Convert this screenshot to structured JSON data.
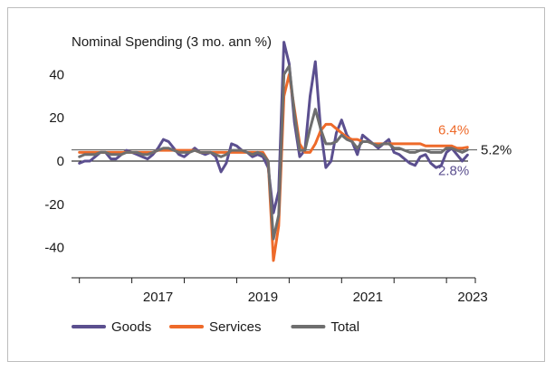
{
  "chart_data": {
    "type": "line",
    "title": "Nominal Spending (3 mo. ann %)",
    "xlabel": "",
    "ylabel": "",
    "xlim": [
      2015.85,
      2023.55
    ],
    "ylim": [
      -54,
      54
    ],
    "y_ticks": [
      40,
      20,
      0,
      -20,
      -40
    ],
    "y_tick_labels": [
      "40",
      "20",
      "0",
      "-20",
      "-40"
    ],
    "x_ticks": [
      2017,
      2019,
      2021,
      2023
    ],
    "x_tick_labels": [
      "2017",
      "2019",
      "2021",
      "2023"
    ],
    "grid": false,
    "reference_lines": [
      {
        "y": 0,
        "color": "#000000"
      },
      {
        "y": 5.2,
        "label": "5.2%",
        "color": "#555555"
      }
    ],
    "annotations": [
      {
        "text": "6.4%",
        "x": 2023.35,
        "y": 6.4,
        "color": "#ee6a2a"
      },
      {
        "text": "5.2%",
        "x": 2023.55,
        "y": 5.2,
        "color": "#1a1a1a"
      },
      {
        "text": "2.8%",
        "x": 2023.35,
        "y": 2.8,
        "color": "#5b4f8f"
      }
    ],
    "legend_position": "bottom-left",
    "series": [
      {
        "name": "Goods",
        "color": "#5b4f8f",
        "x": [
          2016.0,
          2016.1,
          2016.2,
          2016.3,
          2016.4,
          2016.5,
          2016.6,
          2016.7,
          2016.8,
          2016.9,
          2017.0,
          2017.1,
          2017.2,
          2017.3,
          2017.4,
          2017.5,
          2017.6,
          2017.7,
          2017.8,
          2017.9,
          2018.0,
          2018.1,
          2018.2,
          2018.3,
          2018.4,
          2018.5,
          2018.6,
          2018.7,
          2018.8,
          2018.9,
          2019.0,
          2019.1,
          2019.2,
          2019.3,
          2019.4,
          2019.5,
          2019.6,
          2019.7,
          2019.8,
          2019.9,
          2020.0,
          2020.1,
          2020.2,
          2020.3,
          2020.4,
          2020.5,
          2020.6,
          2020.7,
          2020.8,
          2020.9,
          2021.0,
          2021.1,
          2021.2,
          2021.3,
          2021.4,
          2021.5,
          2021.6,
          2021.7,
          2021.8,
          2021.9,
          2022.0,
          2022.1,
          2022.2,
          2022.3,
          2022.4,
          2022.5,
          2022.6,
          2022.7,
          2022.8,
          2022.9,
          2023.0,
          2023.1,
          2023.2,
          2023.3,
          2023.4
        ],
        "values": [
          -1,
          0,
          0,
          2,
          4,
          4,
          1,
          1,
          3,
          5,
          4,
          3,
          2,
          1,
          3,
          6,
          10,
          9,
          6,
          3,
          2,
          4,
          6,
          4,
          3,
          4,
          2,
          -5,
          -1,
          8,
          7,
          5,
          4,
          2,
          3,
          2,
          -3,
          -24,
          -14,
          55,
          45,
          18,
          2,
          5,
          30,
          46,
          15,
          -3,
          0,
          13,
          19,
          12,
          9,
          3,
          12,
          10,
          8,
          6,
          8,
          10,
          4,
          3,
          1,
          -1,
          -2,
          2,
          3,
          -1,
          -3,
          -2,
          4,
          6,
          3,
          0,
          2.8
        ]
      },
      {
        "name": "Services",
        "color": "#ee6a2a",
        "x": [
          2016.0,
          2016.1,
          2016.2,
          2016.3,
          2016.4,
          2016.5,
          2016.6,
          2016.7,
          2016.8,
          2016.9,
          2017.0,
          2017.1,
          2017.2,
          2017.3,
          2017.4,
          2017.5,
          2017.6,
          2017.7,
          2017.8,
          2017.9,
          2018.0,
          2018.1,
          2018.2,
          2018.3,
          2018.4,
          2018.5,
          2018.6,
          2018.7,
          2018.8,
          2018.9,
          2019.0,
          2019.1,
          2019.2,
          2019.3,
          2019.4,
          2019.5,
          2019.6,
          2019.7,
          2019.8,
          2019.9,
          2020.0,
          2020.1,
          2020.2,
          2020.3,
          2020.4,
          2020.5,
          2020.6,
          2020.7,
          2020.8,
          2020.9,
          2021.0,
          2021.1,
          2021.2,
          2021.3,
          2021.4,
          2021.5,
          2021.6,
          2021.7,
          2021.8,
          2021.9,
          2022.0,
          2022.1,
          2022.2,
          2022.3,
          2022.4,
          2022.5,
          2022.6,
          2022.7,
          2022.8,
          2022.9,
          2023.0,
          2023.1,
          2023.2,
          2023.3,
          2023.4
        ],
        "values": [
          4,
          4,
          4,
          4,
          4,
          4,
          4,
          4,
          4,
          4,
          4,
          4,
          4,
          4,
          4,
          5,
          5,
          5,
          5,
          5,
          5,
          5,
          5,
          4,
          4,
          4,
          4,
          4,
          4,
          4,
          4,
          4,
          4,
          4,
          4,
          4,
          0,
          -46,
          -30,
          30,
          40,
          24,
          8,
          4,
          4,
          8,
          14,
          17,
          17,
          15,
          13,
          11,
          10,
          10,
          9,
          9,
          8,
          8,
          8,
          8,
          8,
          8,
          8,
          8,
          8,
          8,
          7,
          7,
          7,
          7,
          7,
          7,
          6,
          6,
          6.4
        ]
      },
      {
        "name": "Total",
        "color": "#6e6e6e",
        "x": [
          2016.0,
          2016.1,
          2016.2,
          2016.3,
          2016.4,
          2016.5,
          2016.6,
          2016.7,
          2016.8,
          2016.9,
          2017.0,
          2017.1,
          2017.2,
          2017.3,
          2017.4,
          2017.5,
          2017.6,
          2017.7,
          2017.8,
          2017.9,
          2018.0,
          2018.1,
          2018.2,
          2018.3,
          2018.4,
          2018.5,
          2018.6,
          2018.7,
          2018.8,
          2018.9,
          2019.0,
          2019.1,
          2019.2,
          2019.3,
          2019.4,
          2019.5,
          2019.6,
          2019.7,
          2019.8,
          2019.9,
          2020.0,
          2020.1,
          2020.2,
          2020.3,
          2020.4,
          2020.5,
          2020.6,
          2020.7,
          2020.8,
          2020.9,
          2021.0,
          2021.1,
          2021.2,
          2021.3,
          2021.4,
          2021.5,
          2021.6,
          2021.7,
          2021.8,
          2021.9,
          2022.0,
          2022.1,
          2022.2,
          2022.3,
          2022.4,
          2022.5,
          2022.6,
          2022.7,
          2022.8,
          2022.9,
          2023.0,
          2023.1,
          2023.2,
          2023.3,
          2023.4
        ],
        "values": [
          2,
          3,
          3,
          3,
          4,
          4,
          3,
          3,
          3,
          4,
          4,
          4,
          3,
          3,
          4,
          5,
          6,
          6,
          5,
          4,
          4,
          4,
          5,
          4,
          4,
          4,
          3,
          2,
          3,
          5,
          5,
          5,
          4,
          3,
          4,
          3,
          0,
          -36,
          -25,
          40,
          44,
          22,
          5,
          5,
          15,
          24,
          15,
          8,
          8,
          9,
          12,
          10,
          9,
          6,
          9,
          9,
          8,
          7,
          8,
          8,
          6,
          6,
          5,
          4,
          4,
          5,
          5,
          4,
          4,
          4,
          6,
          6,
          5,
          4,
          5.2
        ]
      }
    ]
  }
}
